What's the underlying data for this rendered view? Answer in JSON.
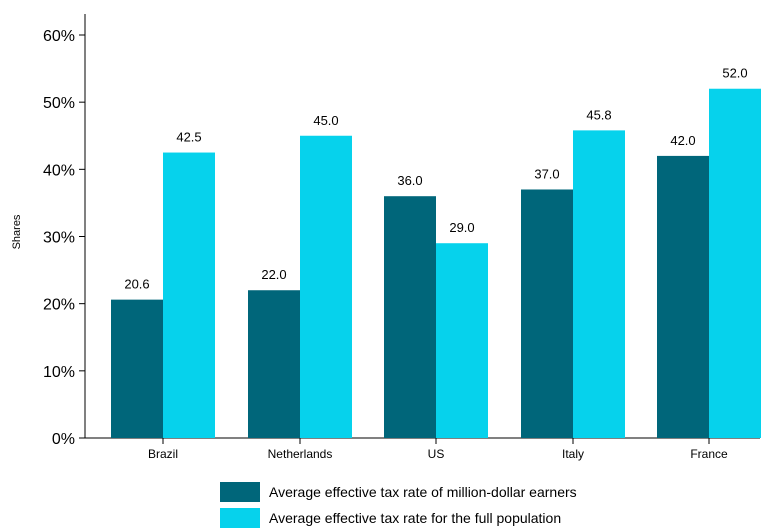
{
  "chart_data": {
    "type": "bar",
    "categories": [
      "Brazil",
      "Netherlands",
      "US",
      "Italy",
      "France"
    ],
    "series": [
      {
        "name": "Average effective tax rate of million-dollar earners",
        "values": [
          20.6,
          22.0,
          36.0,
          37.0,
          42.0
        ],
        "value_labels": [
          "20.6",
          "22.0",
          "36.0",
          "37.0",
          "42.0"
        ],
        "color": "#00667a"
      },
      {
        "name": "Average effective tax rate for the full population",
        "values": [
          42.5,
          45.0,
          29.0,
          45.8,
          52.0
        ],
        "value_labels": [
          "42.5",
          "45.0",
          "29.0",
          "45.8",
          "52.0"
        ],
        "color": "#06d2ec"
      }
    ],
    "ylabel": "Shares",
    "xlabel": "",
    "ylim": [
      0,
      60
    ],
    "yticks": [
      0,
      10,
      20,
      30,
      40,
      50,
      60
    ],
    "ytick_labels": [
      "0%",
      "10%",
      "20%",
      "30%",
      "40%",
      "50%",
      "60%"
    ],
    "grid": false,
    "legend_position": "bottom"
  }
}
